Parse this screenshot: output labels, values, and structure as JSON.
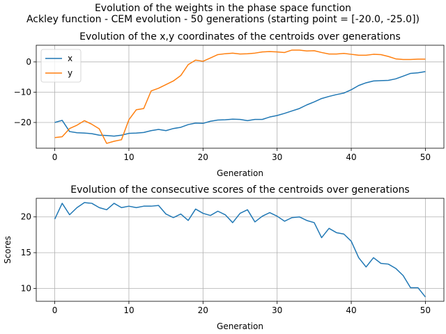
{
  "figure": {
    "suptitle_line1": "Evolution of the weights in the phase space  function",
    "suptitle_line2": "Ackley function - CEM evolution - 50 generations (starting point = [-20.0, -25.0])"
  },
  "colors": {
    "x": "#1f77b4",
    "y": "#ff7f0e",
    "grid": "#b0b0b0"
  },
  "chart_data": [
    {
      "type": "line",
      "title": "Evolution of the x,y coordinates of the centroids over generations",
      "xlabel": "Generation",
      "ylabel": "",
      "xlim": [
        -2.5,
        52.5
      ],
      "ylim": [
        -28.5,
        5.5
      ],
      "xticks": [
        0,
        10,
        20,
        30,
        40,
        50
      ],
      "yticks": [
        -20,
        -10,
        0
      ],
      "grid": true,
      "legend": "upper-left",
      "x": [
        0,
        1,
        2,
        3,
        4,
        5,
        6,
        7,
        8,
        9,
        10,
        11,
        12,
        13,
        14,
        15,
        16,
        17,
        18,
        19,
        20,
        21,
        22,
        23,
        24,
        25,
        26,
        27,
        28,
        29,
        30,
        31,
        32,
        33,
        34,
        35,
        36,
        37,
        38,
        39,
        40,
        41,
        42,
        43,
        44,
        45,
        46,
        47,
        48,
        49,
        50
      ],
      "series": [
        {
          "name": "x",
          "color": "#1f77b4",
          "values": [
            -20.0,
            -19.3,
            -23.0,
            -23.4,
            -23.5,
            -23.7,
            -24.2,
            -24.3,
            -24.5,
            -24.2,
            -23.6,
            -23.5,
            -23.3,
            -22.7,
            -22.3,
            -22.7,
            -22.0,
            -21.6,
            -20.7,
            -20.2,
            -20.3,
            -19.6,
            -19.2,
            -19.1,
            -18.9,
            -19.0,
            -19.4,
            -19.0,
            -19.0,
            -18.2,
            -17.7,
            -17.0,
            -16.2,
            -15.4,
            -14.2,
            -13.2,
            -12.1,
            -11.4,
            -10.8,
            -10.3,
            -9.2,
            -7.8,
            -6.9,
            -6.3,
            -6.2,
            -6.1,
            -5.6,
            -4.7,
            -3.8,
            -3.6,
            -3.2
          ]
        },
        {
          "name": "y",
          "color": "#ff7f0e",
          "values": [
            -25.0,
            -24.7,
            -22.0,
            -20.9,
            -19.4,
            -20.6,
            -22.1,
            -26.9,
            -26.2,
            -25.7,
            -19.1,
            -15.8,
            -15.4,
            -9.6,
            -8.7,
            -7.5,
            -6.3,
            -4.5,
            -0.9,
            0.6,
            0.2,
            1.3,
            2.4,
            2.7,
            2.9,
            2.6,
            2.7,
            2.9,
            3.3,
            3.4,
            3.3,
            3.1,
            3.9,
            3.9,
            3.6,
            3.7,
            3.1,
            2.6,
            2.6,
            2.8,
            2.5,
            2.2,
            2.2,
            2.5,
            2.4,
            1.8,
            1.0,
            0.8,
            0.8,
            0.9,
            0.9
          ]
        }
      ]
    },
    {
      "type": "line",
      "title": "Evolution of the consecutive scores of the centroids over generations",
      "xlabel": "Generation",
      "ylabel": "Scores",
      "xlim": [
        -2.5,
        52.5
      ],
      "ylim": [
        8.2,
        22.6
      ],
      "xticks": [
        0,
        10,
        20,
        30,
        40,
        50
      ],
      "yticks": [
        10,
        15,
        20
      ],
      "grid": true,
      "x": [
        0,
        1,
        2,
        3,
        4,
        5,
        6,
        7,
        8,
        9,
        10,
        11,
        12,
        13,
        14,
        15,
        16,
        17,
        18,
        19,
        20,
        21,
        22,
        23,
        24,
        25,
        26,
        27,
        28,
        29,
        30,
        31,
        32,
        33,
        34,
        35,
        36,
        37,
        38,
        39,
        40,
        41,
        42,
        43,
        44,
        45,
        46,
        47,
        48,
        49,
        50
      ],
      "series": [
        {
          "name": "",
          "color": "#1f77b4",
          "values": [
            19.7,
            21.9,
            20.3,
            21.3,
            22.0,
            21.9,
            21.3,
            21.0,
            21.9,
            21.3,
            21.5,
            21.3,
            21.5,
            21.5,
            21.6,
            20.4,
            19.9,
            20.4,
            19.5,
            21.1,
            20.5,
            20.2,
            20.8,
            20.3,
            19.2,
            20.5,
            21.0,
            19.3,
            20.1,
            20.6,
            20.1,
            19.4,
            19.9,
            20.0,
            19.5,
            19.2,
            17.1,
            18.4,
            17.8,
            17.6,
            16.6,
            14.3,
            13.0,
            14.3,
            13.5,
            13.4,
            12.8,
            11.8,
            10.1,
            10.1,
            8.8
          ]
        }
      ]
    }
  ]
}
